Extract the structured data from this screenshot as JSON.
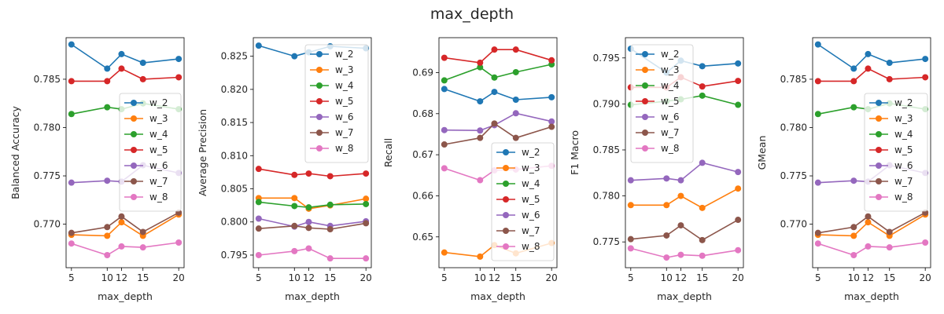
{
  "suptitle": "max_depth",
  "chart_data": [
    {
      "type": "line",
      "title": "",
      "xlabel": "max_depth",
      "ylabel": "Balanced Accuracy",
      "x": [
        5,
        10,
        12,
        15,
        20
      ],
      "xticks": [
        5,
        10,
        12,
        15,
        20
      ],
      "ylim": [
        0.7655,
        0.7893
      ],
      "yticks": [
        0.77,
        0.775,
        0.78,
        0.785
      ],
      "ytick_labels": [
        "0.770",
        "0.775",
        "0.780",
        "0.785"
      ],
      "legend_position": "center-right",
      "series": [
        {
          "name": "w_2",
          "color": "#1f77b4",
          "values": [
            0.7886,
            0.7861,
            0.7876,
            0.7867,
            0.7871
          ]
        },
        {
          "name": "w_3",
          "color": "#ff7f0e",
          "values": [
            0.7689,
            0.7688,
            0.7702,
            0.7688,
            0.771
          ]
        },
        {
          "name": "w_4",
          "color": "#2ca02c",
          "values": [
            0.7814,
            0.7821,
            0.7819,
            0.7825,
            0.7819
          ]
        },
        {
          "name": "w_5",
          "color": "#d62728",
          "values": [
            0.7848,
            0.7848,
            0.7861,
            0.785,
            0.7852
          ]
        },
        {
          "name": "w_6",
          "color": "#9467bd",
          "values": [
            0.7743,
            0.7745,
            0.7744,
            0.7761,
            0.7753
          ]
        },
        {
          "name": "w_7",
          "color": "#8c564b",
          "values": [
            0.7691,
            0.7697,
            0.7708,
            0.7692,
            0.7712
          ]
        },
        {
          "name": "w_8",
          "color": "#e377c2",
          "values": [
            0.768,
            0.7668,
            0.7677,
            0.7676,
            0.7681
          ]
        }
      ]
    },
    {
      "type": "line",
      "title": "",
      "xlabel": "max_depth",
      "ylabel": "Average Precision",
      "x": [
        5,
        10,
        12,
        15,
        20
      ],
      "xticks": [
        5,
        10,
        12,
        15,
        20
      ],
      "ylim": [
        0.7931,
        0.8278
      ],
      "yticks": [
        0.795,
        0.8,
        0.805,
        0.81,
        0.815,
        0.82,
        0.825
      ],
      "ytick_labels": [
        "0.795",
        "0.800",
        "0.805",
        "0.810",
        "0.815",
        "0.820",
        "0.825"
      ],
      "legend_position": "upper-right",
      "series": [
        {
          "name": "w_2",
          "color": "#1f77b4",
          "values": [
            0.8266,
            0.825,
            0.8256,
            0.8265,
            0.8262
          ]
        },
        {
          "name": "w_3",
          "color": "#ff7f0e",
          "values": [
            0.8036,
            0.8036,
            0.802,
            0.8025,
            0.8035
          ]
        },
        {
          "name": "w_4",
          "color": "#2ca02c",
          "values": [
            0.803,
            0.8024,
            0.8022,
            0.8026,
            0.8027
          ]
        },
        {
          "name": "w_5",
          "color": "#d62728",
          "values": [
            0.808,
            0.8071,
            0.8073,
            0.8069,
            0.8073
          ]
        },
        {
          "name": "w_6",
          "color": "#9467bd",
          "values": [
            0.8005,
            0.7993,
            0.8,
            0.7994,
            0.8001
          ]
        },
        {
          "name": "w_7",
          "color": "#8c564b",
          "values": [
            0.799,
            0.7994,
            0.7991,
            0.7989,
            0.7998
          ]
        },
        {
          "name": "w_8",
          "color": "#e377c2",
          "values": [
            0.795,
            0.7956,
            0.796,
            0.7945,
            0.7945
          ]
        }
      ]
    },
    {
      "type": "line",
      "title": "",
      "xlabel": "max_depth",
      "ylabel": "Recall",
      "x": [
        5,
        10,
        12,
        15,
        20
      ],
      "xticks": [
        5,
        10,
        12,
        15,
        20
      ],
      "ylim": [
        0.6425,
        0.6985
      ],
      "yticks": [
        0.65,
        0.66,
        0.67,
        0.68,
        0.69
      ],
      "ytick_labels": [
        "0.65",
        "0.66",
        "0.67",
        "0.68",
        "0.69"
      ],
      "legend_position": "lower-right",
      "series": [
        {
          "name": "w_2",
          "color": "#1f77b4",
          "values": [
            0.686,
            0.683,
            0.6853,
            0.6834,
            0.684
          ]
        },
        {
          "name": "w_3",
          "color": "#ff7f0e",
          "values": [
            0.6462,
            0.6452,
            0.648,
            0.646,
            0.6485
          ]
        },
        {
          "name": "w_4",
          "color": "#2ca02c",
          "values": [
            0.6881,
            0.6913,
            0.6888,
            0.6901,
            0.692
          ]
        },
        {
          "name": "w_5",
          "color": "#d62728",
          "values": [
            0.6936,
            0.6924,
            0.6956,
            0.6956,
            0.693
          ]
        },
        {
          "name": "w_6",
          "color": "#9467bd",
          "values": [
            0.676,
            0.6759,
            0.6772,
            0.6801,
            0.6781
          ]
        },
        {
          "name": "w_7",
          "color": "#8c564b",
          "values": [
            0.6725,
            0.6741,
            0.6776,
            0.6741,
            0.6768
          ]
        },
        {
          "name": "w_8",
          "color": "#e377c2",
          "values": [
            0.6667,
            0.6638,
            0.6662,
            0.6664,
            0.6673
          ]
        }
      ]
    },
    {
      "type": "line",
      "title": "",
      "xlabel": "max_depth",
      "ylabel": "F1 Macro",
      "x": [
        5,
        10,
        12,
        15,
        20
      ],
      "xticks": [
        5,
        10,
        12,
        15,
        20
      ],
      "ylim": [
        0.7722,
        0.7972
      ],
      "yticks": [
        0.775,
        0.78,
        0.785,
        0.79,
        0.795
      ],
      "ytick_labels": [
        "0.775",
        "0.780",
        "0.785",
        "0.790",
        "0.795"
      ],
      "legend_position": "upper-right",
      "series": [
        {
          "name": "w_2",
          "color": "#1f77b4",
          "values": [
            0.796,
            0.7934,
            0.7947,
            0.7941,
            0.7944
          ]
        },
        {
          "name": "w_3",
          "color": "#ff7f0e",
          "values": [
            0.779,
            0.779,
            0.78,
            0.7787,
            0.7808
          ]
        },
        {
          "name": "w_4",
          "color": "#2ca02c",
          "values": [
            0.7899,
            0.7903,
            0.7905,
            0.7909,
            0.7899
          ]
        },
        {
          "name": "w_5",
          "color": "#d62728",
          "values": [
            0.7918,
            0.7918,
            0.7929,
            0.7919,
            0.7925
          ]
        },
        {
          "name": "w_6",
          "color": "#9467bd",
          "values": [
            0.7817,
            0.7819,
            0.7817,
            0.7836,
            0.7826
          ]
        },
        {
          "name": "w_7",
          "color": "#8c564b",
          "values": [
            0.7753,
            0.7757,
            0.7768,
            0.7752,
            0.7774
          ]
        },
        {
          "name": "w_8",
          "color": "#e377c2",
          "values": [
            0.7743,
            0.7733,
            0.7736,
            0.7735,
            0.7741
          ]
        }
      ]
    },
    {
      "type": "line",
      "title": "",
      "xlabel": "max_depth",
      "ylabel": "GMean",
      "x": [
        5,
        10,
        12,
        15,
        20
      ],
      "xticks": [
        5,
        10,
        12,
        15,
        20
      ],
      "ylim": [
        0.7655,
        0.7893
      ],
      "yticks": [
        0.77,
        0.775,
        0.78,
        0.785
      ],
      "ytick_labels": [
        "0.770",
        "0.775",
        "0.780",
        "0.785"
      ],
      "legend_position": "center-right",
      "series": [
        {
          "name": "w_2",
          "color": "#1f77b4",
          "values": [
            0.7886,
            0.7861,
            0.7876,
            0.7867,
            0.7871
          ]
        },
        {
          "name": "w_3",
          "color": "#ff7f0e",
          "values": [
            0.7689,
            0.7688,
            0.7702,
            0.7688,
            0.771
          ]
        },
        {
          "name": "w_4",
          "color": "#2ca02c",
          "values": [
            0.7814,
            0.7821,
            0.7819,
            0.7825,
            0.7819
          ]
        },
        {
          "name": "w_5",
          "color": "#d62728",
          "values": [
            0.7848,
            0.7848,
            0.7861,
            0.785,
            0.7852
          ]
        },
        {
          "name": "w_6",
          "color": "#9467bd",
          "values": [
            0.7743,
            0.7745,
            0.7744,
            0.7761,
            0.7753
          ]
        },
        {
          "name": "w_7",
          "color": "#8c564b",
          "values": [
            0.7691,
            0.7697,
            0.7708,
            0.7692,
            0.7712
          ]
        },
        {
          "name": "w_8",
          "color": "#e377c2",
          "values": [
            0.768,
            0.7668,
            0.7677,
            0.7676,
            0.7681
          ]
        }
      ]
    }
  ]
}
